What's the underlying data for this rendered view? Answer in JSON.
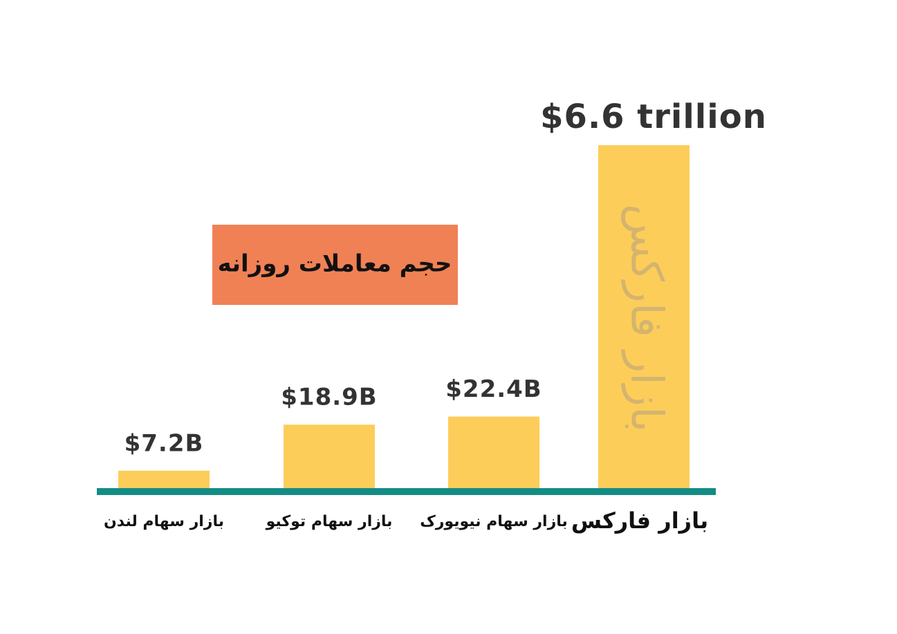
{
  "chart_data": {
    "type": "bar",
    "title": "حجم معاملات روزانه",
    "categories": [
      "بازار سهام لندن",
      "بازار سهام توکیو",
      "بازار سهام نیویورک",
      "بازار فارکس"
    ],
    "values": [
      7.2,
      18.9,
      22.4,
      6600
    ],
    "value_labels": [
      "$7.2B",
      "$18.9B",
      "$22.4B",
      "$6.6 trillion"
    ],
    "bar_annotation": "بازار فارکس",
    "color": "#fdcd5a",
    "axis_color": "#138c84",
    "title_color": "#f08155",
    "log_scale": true,
    "ylim": [
      5,
      6600
    ]
  }
}
